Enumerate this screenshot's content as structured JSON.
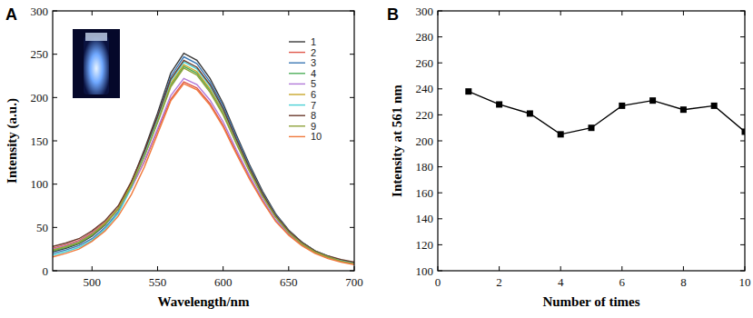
{
  "chart_data": [
    {
      "type": "line",
      "title": "A",
      "x_label": "Wavelength/nm",
      "y_label": "Intensity (a.u.)",
      "x": [
        470,
        480,
        490,
        500,
        510,
        520,
        530,
        540,
        550,
        560,
        570,
        580,
        590,
        600,
        610,
        620,
        630,
        640,
        650,
        660,
        670,
        680,
        690,
        700
      ],
      "xlim": [
        470,
        700
      ],
      "xticks": [
        500,
        550,
        600,
        650,
        700
      ],
      "ylim": [
        0,
        300
      ],
      "yticks": [
        0,
        50,
        100,
        150,
        200,
        250,
        300
      ],
      "grid": false,
      "legend": "upper right",
      "series": [
        {
          "name": "1",
          "color": "#3a3a3a",
          "line_style": "solid",
          "values": [
            22,
            26,
            31,
            40,
            53,
            72,
            102,
            140,
            182,
            228,
            251,
            243,
            222,
            193,
            157,
            123,
            92,
            66,
            47,
            33,
            23,
            17,
            12,
            9
          ]
        },
        {
          "name": "2",
          "color": "#e0584a",
          "line_style": "solid",
          "values": [
            26,
            30,
            35,
            44,
            56,
            72,
            96,
            126,
            162,
            198,
            218,
            211,
            193,
            168,
            137,
            108,
            81,
            58,
            42,
            30,
            21,
            15,
            11,
            8
          ]
        },
        {
          "name": "3",
          "color": "#3c78b4",
          "line_style": "solid",
          "values": [
            20,
            24,
            29,
            37,
            50,
            68,
            98,
            136,
            178,
            224,
            247,
            239,
            218,
            190,
            155,
            121,
            90,
            65,
            46,
            33,
            23,
            17,
            12,
            9
          ]
        },
        {
          "name": "4",
          "color": "#4fae5a",
          "line_style": "solid",
          "values": [
            23,
            27,
            32,
            41,
            54,
            71,
            99,
            133,
            172,
            214,
            236,
            228,
            208,
            182,
            148,
            116,
            87,
            62,
            44,
            31,
            22,
            16,
            12,
            9
          ]
        },
        {
          "name": "5",
          "color": "#b27ad8",
          "line_style": "solid",
          "values": [
            25,
            29,
            34,
            43,
            55,
            71,
            95,
            127,
            164,
            202,
            222,
            215,
            197,
            172,
            140,
            110,
            83,
            59,
            43,
            31,
            22,
            16,
            11,
            8
          ]
        },
        {
          "name": "6",
          "color": "#c9a62c",
          "line_style": "solid",
          "values": [
            24,
            28,
            33,
            42,
            55,
            72,
            100,
            134,
            174,
            216,
            238,
            230,
            210,
            184,
            149,
            117,
            88,
            63,
            45,
            32,
            22,
            16,
            12,
            9
          ]
        },
        {
          "name": "7",
          "color": "#4cd0d6",
          "line_style": "solid",
          "values": [
            18,
            22,
            27,
            35,
            48,
            66,
            96,
            134,
            176,
            219,
            241,
            233,
            213,
            186,
            151,
            119,
            89,
            64,
            46,
            33,
            23,
            17,
            12,
            9
          ]
        },
        {
          "name": "8",
          "color": "#6a3a2c",
          "line_style": "solid",
          "values": [
            28,
            32,
            37,
            46,
            58,
            75,
            103,
            138,
            178,
            221,
            243,
            235,
            215,
            187,
            152,
            119,
            89,
            64,
            46,
            33,
            23,
            17,
            13,
            10
          ]
        },
        {
          "name": "9",
          "color": "#8ea23a",
          "line_style": "solid",
          "values": [
            24,
            28,
            33,
            42,
            54,
            71,
            98,
            132,
            171,
            212,
            234,
            226,
            206,
            180,
            147,
            115,
            86,
            62,
            44,
            31,
            22,
            16,
            11,
            8
          ]
        },
        {
          "name": "10",
          "color": "#f07a3c",
          "line_style": "solid",
          "values": [
            16,
            20,
            25,
            34,
            46,
            63,
            88,
            120,
            158,
            196,
            216,
            209,
            191,
            166,
            135,
            106,
            80,
            57,
            41,
            29,
            20,
            14,
            10,
            7
          ]
        }
      ]
    },
    {
      "type": "line",
      "title": "B",
      "x_label": "Number of times",
      "y_label": "Intensity at 561 nm",
      "x": [
        1,
        2,
        3,
        4,
        5,
        6,
        7,
        8,
        9,
        10
      ],
      "xlim": [
        0,
        10
      ],
      "xticks": [
        0,
        2,
        4,
        6,
        8,
        10
      ],
      "ylim": [
        100,
        300
      ],
      "yticks": [
        100,
        120,
        140,
        160,
        180,
        200,
        220,
        240,
        260,
        280,
        300
      ],
      "grid": false,
      "series": [
        {
          "color": "#000000",
          "marker": "square",
          "line_style": "solid",
          "values": [
            238,
            228,
            221,
            205,
            210,
            227,
            231,
            224,
            227,
            207
          ]
        }
      ]
    }
  ]
}
